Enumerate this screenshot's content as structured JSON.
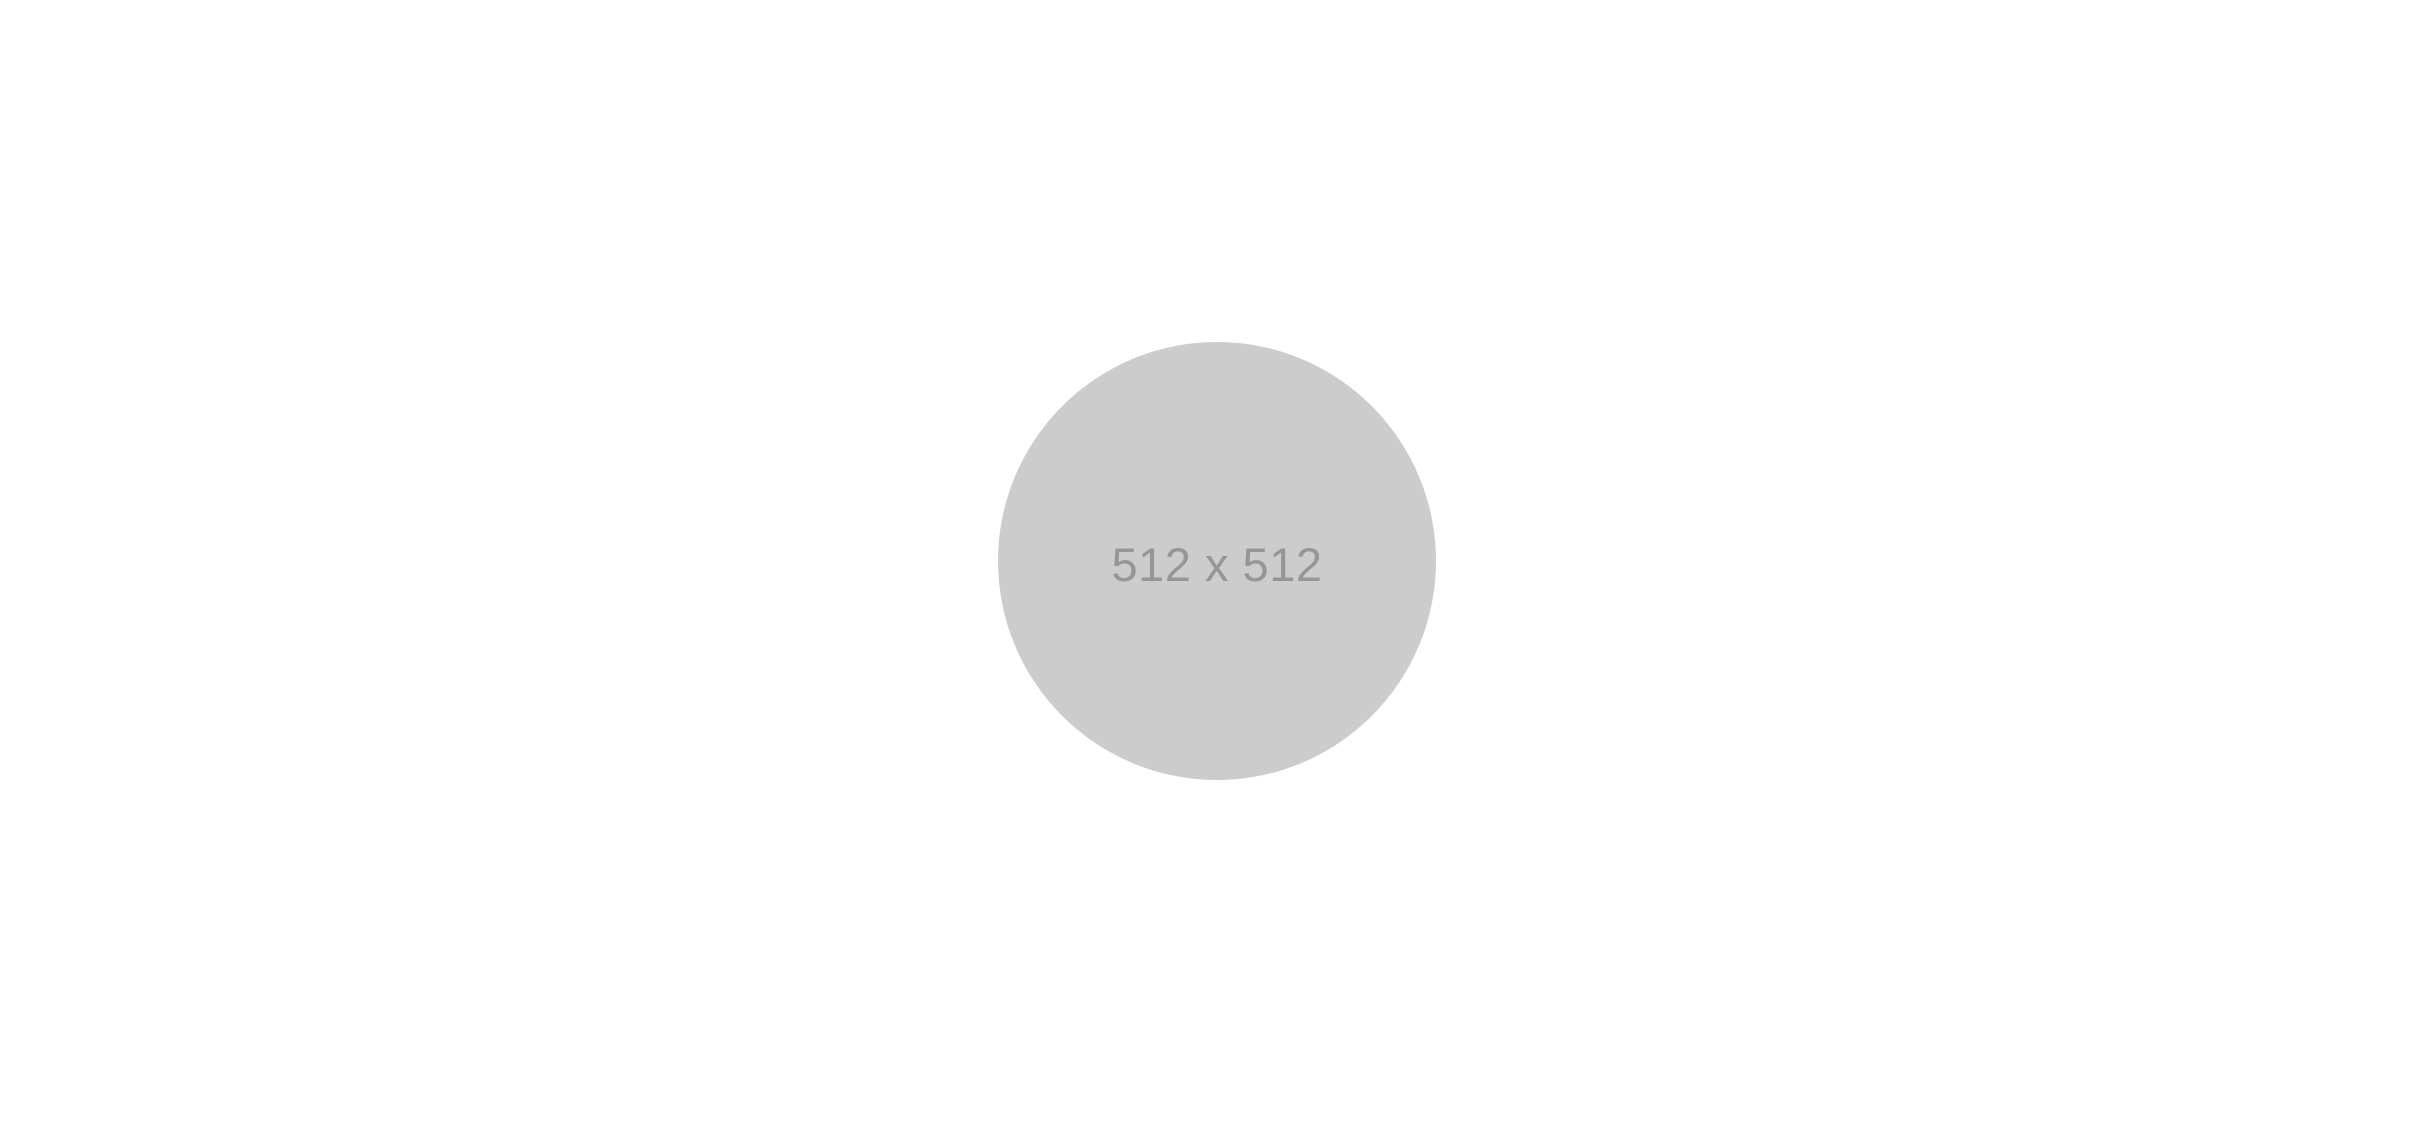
{
  "placeholder": {
    "label": "512 x 512"
  },
  "colors": {
    "background": "#ffffff",
    "placeholder_fill": "#cccccc",
    "placeholder_text": "#969696"
  }
}
